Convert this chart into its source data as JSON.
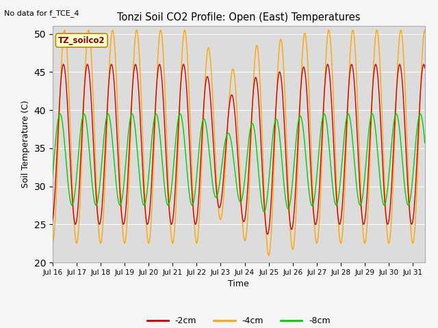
{
  "title": "Tonzi Soil CO2 Profile: Open (East) Temperatures",
  "no_data_text": "No data for f_TCE_4",
  "ylabel": "Soil Temperature (C)",
  "xlabel": "Time",
  "annotation": "TZ_soilco2",
  "ylim": [
    20,
    51
  ],
  "yticks": [
    20,
    25,
    30,
    35,
    40,
    45,
    50
  ],
  "xlim": [
    0,
    15.5
  ],
  "plot_bg_color": "#dcdcdc",
  "fig_bg_color": "#f5f5f5",
  "colors": {
    "-2cm": "#cc0000",
    "-4cm": "#ffa500",
    "-8cm": "#00cc00"
  },
  "legend_labels": [
    "-2cm",
    "-4cm",
    "-8cm"
  ],
  "xtick_labels": [
    "Jul 16",
    "Jul 17",
    "Jul 18",
    "Jul 19",
    "Jul 20",
    "Jul 21",
    "Jul 22",
    "Jul 23",
    "Jul 24",
    "Jul 25",
    "Jul 26",
    "Jul 27",
    "Jul 28",
    "Jul 29",
    "Jul 30",
    "Jul 31"
  ]
}
